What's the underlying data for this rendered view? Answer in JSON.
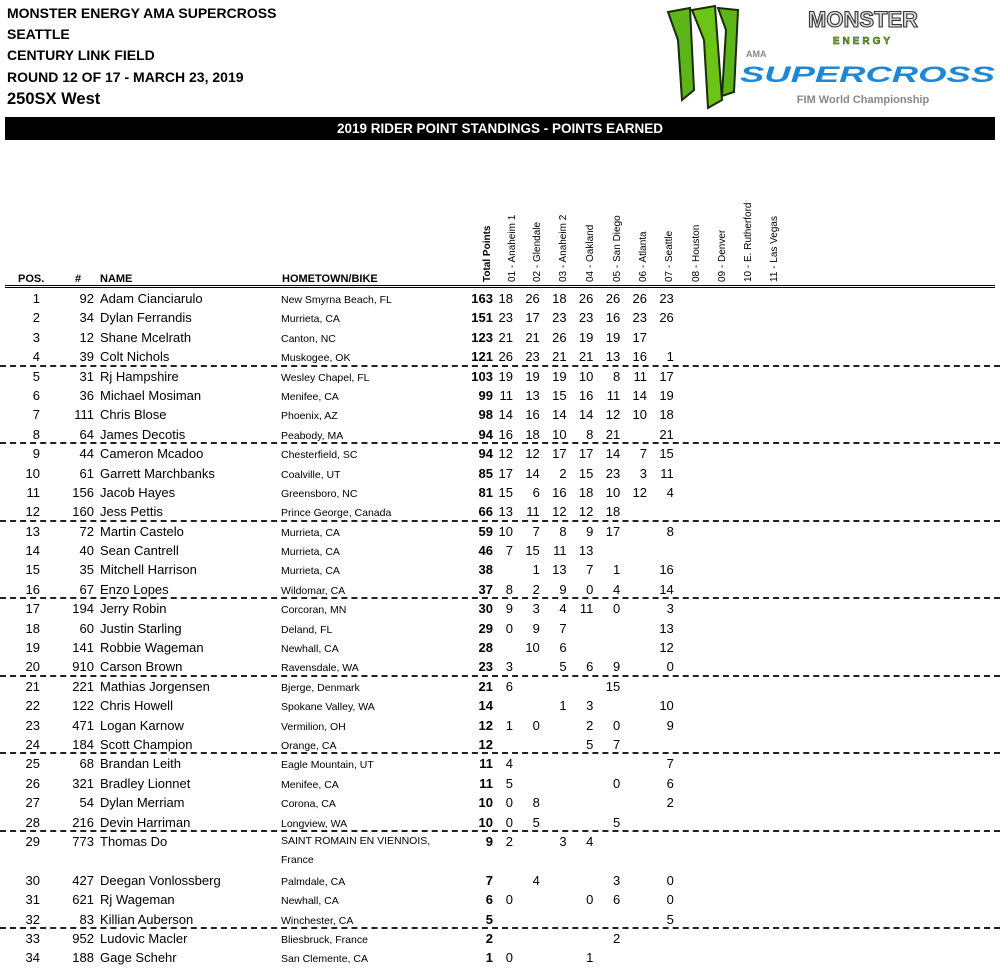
{
  "header": {
    "lines": [
      "MONSTER ENERGY AMA SUPERCROSS",
      "SEATTLE",
      "CENTURY LINK FIELD",
      "ROUND 12 OF 17 - MARCH 23, 2019"
    ],
    "class": "250SX West"
  },
  "logo": {
    "brand": "MONSTER",
    "energy": "ENERGY",
    "ama": "AMA",
    "series": "SUPERCROSS",
    "sub": "FIM World Championship"
  },
  "banner": "2019 RIDER POINT STANDINGS  - POINTS EARNED",
  "columns": {
    "pos": "POS.",
    "num": "#",
    "name": "NAME",
    "hometown": "HOMETOWN/BIKE",
    "total": "Total Points",
    "races": [
      "01 - Anaheim 1",
      "02 - Glendale",
      "03 - Anaheim 2",
      "04 - Oakland",
      "05 - San Diego",
      "06 - Atlanta",
      "07 - Seattle",
      "08 - Houston",
      "09 - Denver",
      "10 - E. Rutherford",
      "11 - Las Vegas"
    ]
  },
  "riders": [
    {
      "pos": "1",
      "num": "92",
      "name": "Adam Cianciarulo",
      "home": "New Smyrna Beach, FL",
      "total": "163",
      "pts": [
        "18",
        "26",
        "18",
        "26",
        "26",
        "26",
        "23"
      ]
    },
    {
      "pos": "2",
      "num": "34",
      "name": "Dylan Ferrandis",
      "home": "Murrieta, CA",
      "total": "151",
      "pts": [
        "23",
        "17",
        "23",
        "23",
        "16",
        "23",
        "26"
      ]
    },
    {
      "pos": "3",
      "num": "12",
      "name": "Shane Mcelrath",
      "home": "Canton, NC",
      "total": "123",
      "pts": [
        "21",
        "21",
        "26",
        "19",
        "19",
        "17",
        ""
      ]
    },
    {
      "pos": "4",
      "num": "39",
      "name": "Colt Nichols",
      "home": "Muskogee, OK",
      "total": "121",
      "pts": [
        "26",
        "23",
        "21",
        "21",
        "13",
        "16",
        "1"
      ]
    },
    {
      "pos": "5",
      "num": "31",
      "name": "Rj Hampshire",
      "home": "Wesley Chapel, FL",
      "total": "103",
      "pts": [
        "19",
        "19",
        "19",
        "10",
        "8",
        "11",
        "17"
      ]
    },
    {
      "pos": "6",
      "num": "36",
      "name": "Michael Mosiman",
      "home": "Menifee, CA",
      "total": "99",
      "pts": [
        "11",
        "13",
        "15",
        "16",
        "11",
        "14",
        "19"
      ]
    },
    {
      "pos": "7",
      "num": "111",
      "name": "Chris Blose",
      "home": "Phoenix, AZ",
      "total": "98",
      "pts": [
        "14",
        "16",
        "14",
        "14",
        "12",
        "10",
        "18"
      ]
    },
    {
      "pos": "8",
      "num": "64",
      "name": "James Decotis",
      "home": "Peabody, MA",
      "total": "94",
      "pts": [
        "16",
        "18",
        "10",
        "8",
        "21",
        "",
        "21"
      ]
    },
    {
      "pos": "9",
      "num": "44",
      "name": "Cameron Mcadoo",
      "home": "Chesterfield, SC",
      "total": "94",
      "pts": [
        "12",
        "12",
        "17",
        "17",
        "14",
        "7",
        "15"
      ]
    },
    {
      "pos": "10",
      "num": "61",
      "name": "Garrett Marchbanks",
      "home": "Coalville, UT",
      "total": "85",
      "pts": [
        "17",
        "14",
        "2",
        "15",
        "23",
        "3",
        "11"
      ]
    },
    {
      "pos": "11",
      "num": "156",
      "name": "Jacob Hayes",
      "home": "Greensboro, NC",
      "total": "81",
      "pts": [
        "15",
        "6",
        "16",
        "18",
        "10",
        "12",
        "4"
      ]
    },
    {
      "pos": "12",
      "num": "160",
      "name": "Jess Pettis",
      "home": "Prince  George, Canada",
      "total": "66",
      "pts": [
        "13",
        "11",
        "12",
        "12",
        "18",
        "",
        ""
      ]
    },
    {
      "pos": "13",
      "num": "72",
      "name": "Martin Castelo",
      "home": "Murrieta, CA",
      "total": "59",
      "pts": [
        "10",
        "7",
        "8",
        "9",
        "17",
        "",
        "8"
      ]
    },
    {
      "pos": "14",
      "num": "40",
      "name": "Sean Cantrell",
      "home": "Murrieta, CA",
      "total": "46",
      "pts": [
        "7",
        "15",
        "11",
        "13",
        "",
        "",
        ""
      ]
    },
    {
      "pos": "15",
      "num": "35",
      "name": "Mitchell Harrison",
      "home": "Murrieta, CA",
      "total": "38",
      "pts": [
        "",
        "1",
        "13",
        "7",
        "1",
        "",
        "16"
      ]
    },
    {
      "pos": "16",
      "num": "67",
      "name": "Enzo Lopes",
      "home": "Wildomar, CA",
      "total": "37",
      "pts": [
        "8",
        "2",
        "9",
        "0",
        "4",
        "",
        "14"
      ]
    },
    {
      "pos": "17",
      "num": "194",
      "name": "Jerry Robin",
      "home": "Corcoran, MN",
      "total": "30",
      "pts": [
        "9",
        "3",
        "4",
        "11",
        "0",
        "",
        "3"
      ]
    },
    {
      "pos": "18",
      "num": "60",
      "name": "Justin Starling",
      "home": "Deland, FL",
      "total": "29",
      "pts": [
        "0",
        "9",
        "7",
        "",
        "",
        "",
        "13"
      ]
    },
    {
      "pos": "19",
      "num": "141",
      "name": "Robbie Wageman",
      "home": "Newhall, CA",
      "total": "28",
      "pts": [
        "",
        "10",
        "6",
        "",
        "",
        "",
        "12"
      ]
    },
    {
      "pos": "20",
      "num": "910",
      "name": "Carson Brown",
      "home": "Ravensdale, WA",
      "total": "23",
      "pts": [
        "3",
        "",
        "5",
        "6",
        "9",
        "",
        "0"
      ]
    },
    {
      "pos": "21",
      "num": "221",
      "name": "Mathias Jorgensen",
      "home": "Bjerge, Denmark",
      "total": "21",
      "pts": [
        "6",
        "",
        "",
        "",
        "15",
        "",
        ""
      ]
    },
    {
      "pos": "22",
      "num": "122",
      "name": "Chris Howell",
      "home": "Spokane Valley, WA",
      "total": "14",
      "pts": [
        "",
        "",
        "1",
        "3",
        "",
        "",
        "10"
      ]
    },
    {
      "pos": "23",
      "num": "471",
      "name": "Logan Karnow",
      "home": "Vermilion, OH",
      "total": "12",
      "pts": [
        "1",
        "0",
        "",
        "2",
        "0",
        "",
        "9"
      ]
    },
    {
      "pos": "24",
      "num": "184",
      "name": "Scott Champion",
      "home": "Orange, CA",
      "total": "12",
      "pts": [
        "",
        "",
        "",
        "5",
        "7",
        "",
        ""
      ]
    },
    {
      "pos": "25",
      "num": "68",
      "name": "Brandan Leith",
      "home": "Eagle Mountain, UT",
      "total": "11",
      "pts": [
        "4",
        "",
        "",
        "",
        "",
        "",
        "7"
      ]
    },
    {
      "pos": "26",
      "num": "321",
      "name": "Bradley Lionnet",
      "home": "Menifee, CA",
      "total": "11",
      "pts": [
        "5",
        "",
        "",
        "",
        "0",
        "",
        "6"
      ]
    },
    {
      "pos": "27",
      "num": "54",
      "name": "Dylan Merriam",
      "home": "Corona, CA",
      "total": "10",
      "pts": [
        "0",
        "8",
        "",
        "",
        "",
        "",
        "2"
      ]
    },
    {
      "pos": "28",
      "num": "216",
      "name": "Devin Harriman",
      "home": "Longview, WA",
      "total": "10",
      "pts": [
        "0",
        "5",
        "",
        "",
        "5",
        "",
        ""
      ]
    },
    {
      "pos": "29",
      "num": "773",
      "name": "Thomas Do",
      "home": "SAINT ROMAIN EN VIENNOIS, France",
      "total": "9",
      "pts": [
        "2",
        "",
        "3",
        "4",
        "",
        "",
        ""
      ]
    },
    {
      "pos": "30",
      "num": "427",
      "name": "Deegan Vonlossberg",
      "home": "Palmdale, CA",
      "total": "7",
      "pts": [
        "",
        "4",
        "",
        "",
        "3",
        "",
        "0"
      ]
    },
    {
      "pos": "31",
      "num": "621",
      "name": "Rj Wageman",
      "home": "Newhall, CA",
      "total": "6",
      "pts": [
        "0",
        "",
        "",
        "0",
        "6",
        "",
        "0"
      ]
    },
    {
      "pos": "32",
      "num": "83",
      "name": "Killian Auberson",
      "home": "Winchester, CA",
      "total": "5",
      "pts": [
        "",
        "",
        "",
        "",
        "",
        "",
        "5"
      ]
    },
    {
      "pos": "33",
      "num": "952",
      "name": "Ludovic Macler",
      "home": "Bliesbruck, France",
      "total": "2",
      "pts": [
        "",
        "",
        "",
        "",
        "2",
        "",
        ""
      ]
    },
    {
      "pos": "34",
      "num": "188",
      "name": "Gage Schehr",
      "home": "San Clemente, CA",
      "total": "1",
      "pts": [
        "0",
        "",
        "",
        "1",
        "",
        "",
        ""
      ]
    }
  ],
  "colors": {
    "banner": "#000000",
    "logo_green": "#6cc417",
    "logo_blue": "#1e88d6"
  }
}
